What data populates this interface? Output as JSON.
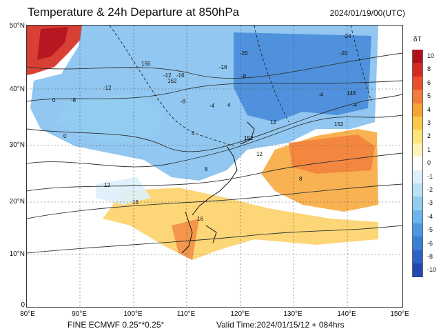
{
  "header": {
    "title": "Temperature & 24h Departure at 850hPa",
    "timestamp": "2024/01/19/00(UTC)"
  },
  "footer": {
    "model": "FINE ECMWF 0.25°*0.25°",
    "valid_time": "Valid Time:2024/01/15/12 + 084hrs"
  },
  "legend": {
    "title": "δT",
    "labels": [
      "10",
      "8",
      "6",
      "5",
      "4",
      "3",
      "2",
      "1",
      "0",
      "-1",
      "-2",
      "-3",
      "-4",
      "-5",
      "-6",
      "-8",
      "-10"
    ],
    "colors": [
      "#b2101c",
      "#d42b20",
      "#ea4e2e",
      "#f17c3b",
      "#f7a434",
      "#fbc84a",
      "#fde57a",
      "#fff4b8",
      "#ffffff",
      "#dcf1fb",
      "#b9e2f6",
      "#93cdf1",
      "#6cb4eb",
      "#4d97e0",
      "#3a7fd6",
      "#2d63c7",
      "#2149b2"
    ]
  },
  "axes": {
    "lat_labels": [
      "50°N",
      "40°N",
      "30°N",
      "20°N",
      "10°N",
      "0"
    ],
    "lon_labels": [
      "80°E",
      "90°E",
      "100°E",
      "110°E",
      "120°E",
      "130°E",
      "140°E",
      "150°E"
    ]
  },
  "contour_labels": [
    "-24",
    "-20",
    "-20",
    "-16",
    "-16",
    "-12",
    "-12",
    "-8",
    "-8",
    "-8",
    "-4",
    "-4",
    "-4",
    "0",
    "0",
    "4",
    "4",
    "8",
    "8",
    "12",
    "12",
    "12",
    "16",
    "16",
    "148",
    "152",
    "152",
    "152",
    "156"
  ],
  "colors": {
    "cold_strong": "#2d63c7",
    "cold_mid": "#6cb4eb",
    "cold_light": "#b9e2f6",
    "warm_strong": "#b2101c",
    "warm_mid": "#f7a434",
    "warm_light": "#fde57a"
  }
}
